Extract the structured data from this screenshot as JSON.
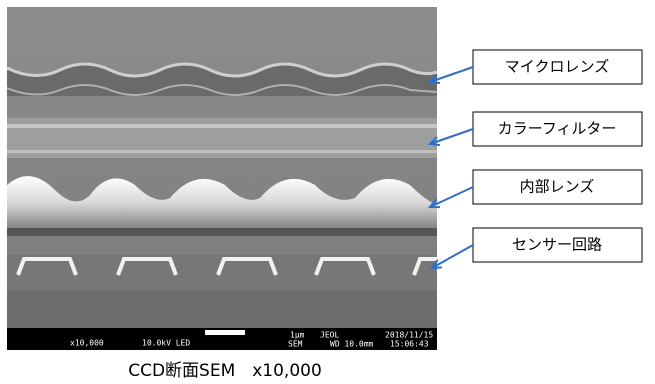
{
  "labels": [
    "マイクロレンズ",
    "カラーフィルター",
    "内部レンズ",
    "センサー回路"
  ],
  "caption": "CCD断面SEM　x10,000",
  "info_bar": {
    "magnification": "x10,000",
    "voltage": "10.0kV LED",
    "scale": "1μm",
    "detector": "SEM",
    "maker": "JEOL",
    "working_distance": "WD 10.0mm",
    "date": "2018/11/15",
    "time": "15:06:43"
  }
}
